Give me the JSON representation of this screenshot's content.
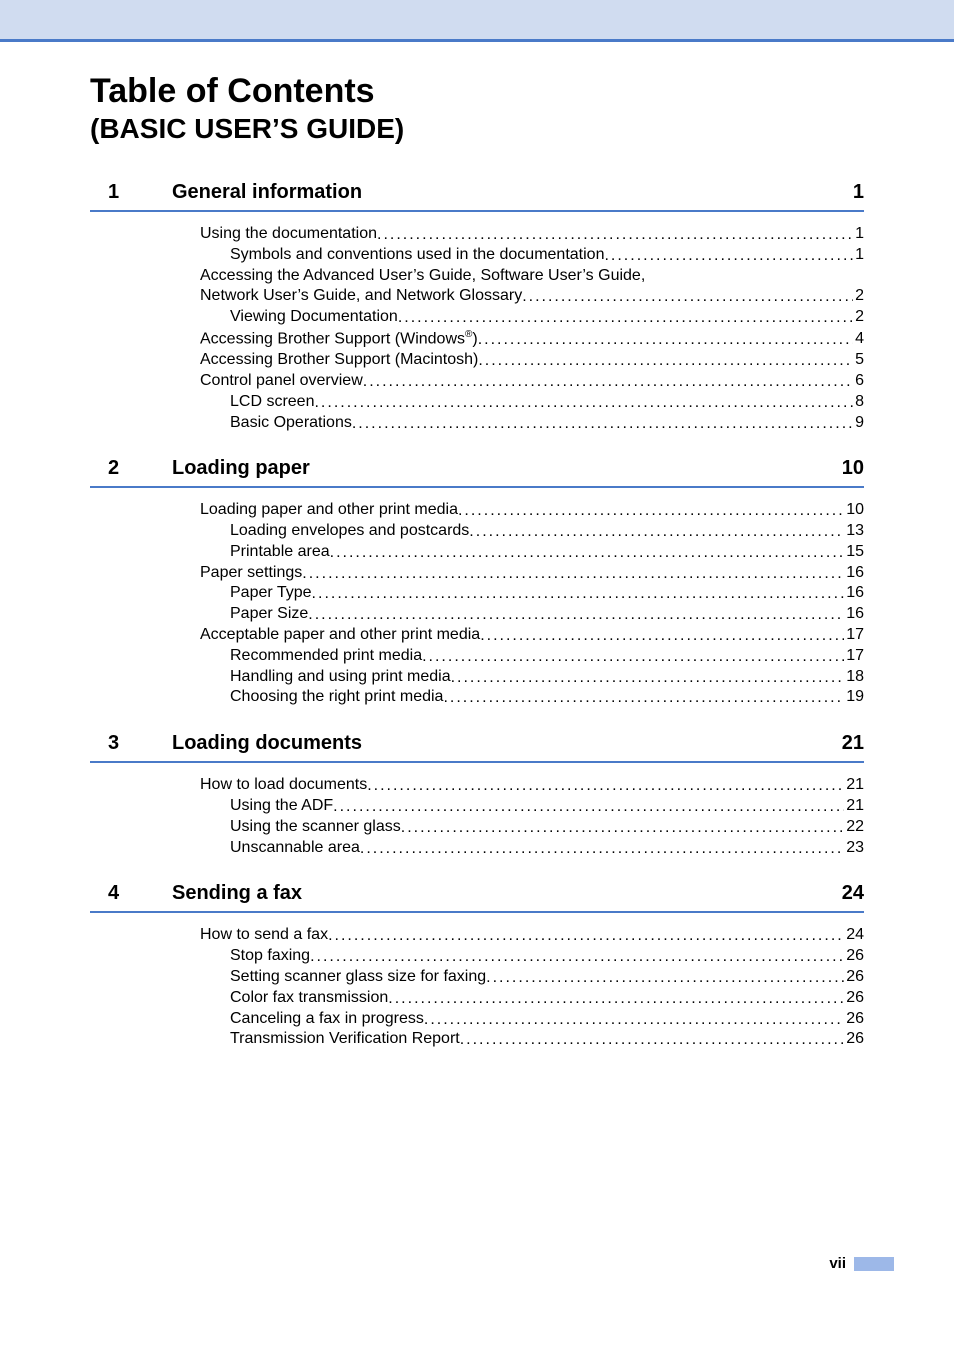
{
  "colors": {
    "topbar_bg": "#d0dcf0",
    "rule": "#4a7ac8",
    "footer_bar": "#9db8e8",
    "text": "#000000",
    "page_bg": "#ffffff"
  },
  "typography": {
    "main_title_size_pt": 26,
    "subtitle_size_pt": 21,
    "section_header_size_pt": 15,
    "entry_size_pt": 12,
    "footer_size_pt": 11,
    "font_family": "Arial"
  },
  "title": "Table of Contents",
  "subtitle": "(BASIC USER’S GUIDE)",
  "page_number": "vii",
  "sections": [
    {
      "number": "1",
      "title": "General information",
      "page": "1",
      "entries": [
        {
          "label": "Using the documentation",
          "page": "1",
          "indent": 0
        },
        {
          "label": "Symbols and conventions used in the documentation",
          "page": "1",
          "indent": 1
        },
        {
          "label_wrap_first": "Accessing the Advanced User’s Guide, Software User’s Guide, ",
          "label_wrap_second": "Network User’s Guide, and Network Glossary",
          "page": "2",
          "indent": 0,
          "wrap": true
        },
        {
          "label": "Viewing Documentation",
          "page": "2",
          "indent": 1
        },
        {
          "label_pre": "Accessing Brother Support (Windows",
          "sup": "®",
          "label_post": ")",
          "page": "4",
          "indent": 0
        },
        {
          "label": "Accessing Brother Support (Macintosh)",
          "page": "5",
          "indent": 0
        },
        {
          "label": "Control panel overview",
          "page": "6",
          "indent": 0
        },
        {
          "label": "LCD screen",
          "page": "8",
          "indent": 1
        },
        {
          "label": "Basic Operations",
          "page": "9",
          "indent": 1
        }
      ]
    },
    {
      "number": "2",
      "title": "Loading paper",
      "page": "10",
      "entries": [
        {
          "label": "Loading paper and other print media",
          "page": "10",
          "indent": 0
        },
        {
          "label": "Loading envelopes and postcards",
          "page": "13",
          "indent": 1
        },
        {
          "label": "Printable area",
          "page": "15",
          "indent": 1
        },
        {
          "label": "Paper settings",
          "page": "16",
          "indent": 0
        },
        {
          "label": "Paper Type",
          "page": "16",
          "indent": 1
        },
        {
          "label": "Paper Size",
          "page": "16",
          "indent": 1
        },
        {
          "label": "Acceptable paper and other print media",
          "page": "17",
          "indent": 0
        },
        {
          "label": "Recommended print media",
          "page": "17",
          "indent": 1
        },
        {
          "label": "Handling and using print media",
          "page": "18",
          "indent": 1
        },
        {
          "label": "Choosing the right print media",
          "page": "19",
          "indent": 1
        }
      ]
    },
    {
      "number": "3",
      "title": "Loading documents",
      "page": "21",
      "entries": [
        {
          "label": "How to load documents",
          "page": "21",
          "indent": 0
        },
        {
          "label": "Using the ADF",
          "page": "21",
          "indent": 1
        },
        {
          "label": "Using the scanner glass",
          "page": "22",
          "indent": 1
        },
        {
          "label": "Unscannable area",
          "page": "23",
          "indent": 1
        }
      ]
    },
    {
      "number": "4",
      "title": "Sending a fax",
      "page": "24",
      "entries": [
        {
          "label": "How to send a fax",
          "page": "24",
          "indent": 0
        },
        {
          "label": "Stop faxing",
          "page": "26",
          "indent": 1
        },
        {
          "label": "Setting scanner glass size for faxing",
          "page": "26",
          "indent": 1
        },
        {
          "label": "Color fax transmission",
          "page": "26",
          "indent": 1
        },
        {
          "label": "Canceling a fax in progress",
          "page": "26",
          "indent": 1
        },
        {
          "label": "Transmission Verification Report",
          "page": "26",
          "indent": 1
        }
      ]
    }
  ]
}
